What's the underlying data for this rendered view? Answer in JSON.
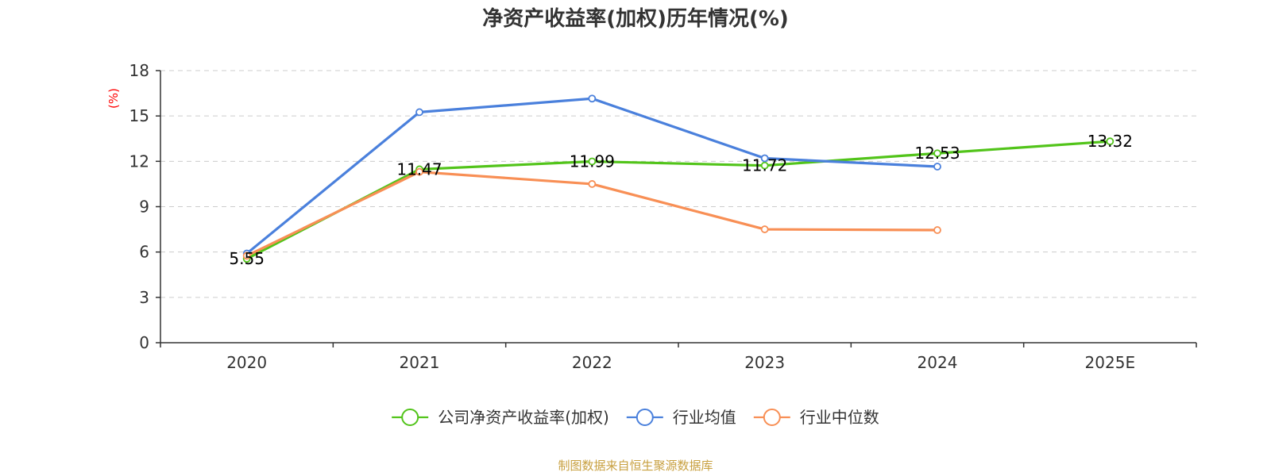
{
  "chart_data": {
    "type": "line",
    "title": "净资产收益率(加权)历年情况(%)",
    "ylabel": "(%)",
    "xlabel": "",
    "categories": [
      "2020",
      "2021",
      "2022",
      "2023",
      "2024",
      "2025E"
    ],
    "ylim": [
      0,
      18
    ],
    "yticks": [
      0,
      3,
      6,
      9,
      12,
      15,
      18
    ],
    "grid": true,
    "legend_position": "bottom-center",
    "series": [
      {
        "name": "公司净资产收益率(加权)",
        "color": "#52c41a",
        "values": [
          5.55,
          11.47,
          11.99,
          11.72,
          12.53,
          13.32
        ],
        "labels": [
          "5.55",
          "11.47",
          "11.99",
          "11.72",
          "12.53",
          "13.32"
        ]
      },
      {
        "name": "行业均值",
        "color": "#4a80dc",
        "values": [
          5.9,
          15.25,
          16.15,
          12.2,
          11.65,
          null
        ]
      },
      {
        "name": "行业中位数",
        "color": "#f88f55",
        "values": [
          5.75,
          11.3,
          10.5,
          7.5,
          7.45,
          null
        ]
      }
    ]
  },
  "source_note": "制图数据来自恒生聚源数据库"
}
